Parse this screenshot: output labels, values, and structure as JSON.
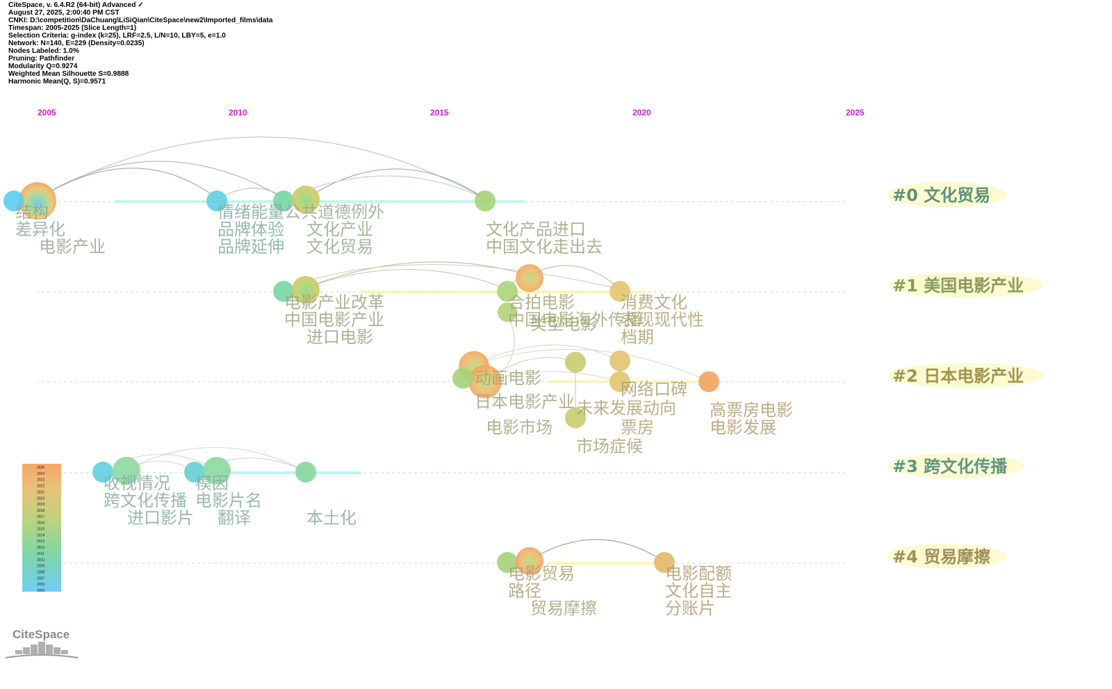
{
  "header": {
    "lines": [
      "CiteSpace, v. 6.4.R2 (64-bit) Advanced ✓",
      "August 27, 2025, 2:00:40 PM CST",
      "CNKI: D:\\competition\\DaChuang\\LiSiQian\\CiteSpace\\new2\\Imported_films\\data",
      "Timespan: 2005-2025 (Slice Length=1)",
      "Selection Criteria: g-index (k=25), LRF=2.5, L/N=10, LBY=5, e=1.0",
      "Network: N=140, E=229 (Density=0.0235)",
      "Nodes Labeled: 1.0%",
      "Pruning: Pathfinder",
      "Modularity Q=0.9274",
      "Weighted Mean Silhouette S=0.9888",
      "Harmonic Mean(Q, S)=0.9571"
    ]
  },
  "colors": {
    "year_label": "#d21dd2",
    "cluster_label": "#5b8f6e",
    "node_label": "#8f9a5e",
    "gradient_old": "#5cc8f5",
    "gradient_mid": "#9fd07c",
    "gradient_new": "#f5a060"
  },
  "timeline": {
    "years": [
      "2005",
      "2010",
      "2015",
      "2020",
      "2025"
    ]
  },
  "clusters": [
    {
      "id": "#0",
      "name": "文化贸易",
      "label": "#0 文化贸易"
    },
    {
      "id": "#1",
      "name": "美国电影产业",
      "label": "#1 美国电影产业"
    },
    {
      "id": "#2",
      "name": "日本电影产业",
      "label": "#2 日本电影产业"
    },
    {
      "id": "#3",
      "name": "跨文化传播",
      "label": "#3 跨文化传播"
    },
    {
      "id": "#4",
      "name": "贸易摩擦",
      "label": "#4 贸易摩擦"
    }
  ],
  "keywords": [
    "结构",
    "差异化",
    "电影产业",
    "情绪能量",
    "品牌体验",
    "品牌延伸",
    "公共道德例外",
    "文化产业",
    "文化贸易",
    "文化产品进口",
    "中国文化走出去",
    "电影产业改革",
    "中国电影产业",
    "进口电影",
    "合拍电影",
    "中国电影海外传播",
    "类型电影",
    "消费文化",
    "表现现代性",
    "档期",
    "动画电影",
    "日本电影产业",
    "电影市场",
    "网络口碑",
    "未来发展动向",
    "票房",
    "市场症候",
    "高票房电影",
    "电影发展",
    "收视情况",
    "跨文化传播",
    "进口影片",
    "模因",
    "电影片名",
    "翻译",
    "本土化",
    "电影贸易",
    "路径",
    "贸易摩擦",
    "电影配额",
    "文化自主",
    "分账片"
  ],
  "legend": {
    "years": [
      "2025",
      "2024",
      "2023",
      "2022",
      "2021",
      "2020",
      "2019",
      "2018",
      "2017",
      "2016",
      "2015",
      "2014",
      "2013",
      "2012",
      "2011",
      "2010",
      "2009",
      "2008",
      "2007",
      "2006",
      "2005"
    ]
  },
  "logo": {
    "text": "CiteSpace"
  }
}
